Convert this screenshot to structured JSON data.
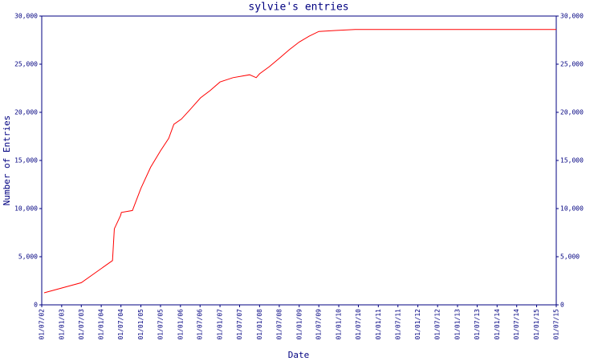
{
  "chart_data": {
    "type": "line",
    "title": "sylvie's entries",
    "x_label": "Date",
    "y_label": "Number of Entries",
    "color": "#ff0000",
    "x": [
      "23/07/02",
      "01/07/03",
      "14/04/04",
      "01/05/04",
      "28/06/04",
      "05/07/04",
      "15/10/04",
      "01/01/05",
      "01/04/05",
      "01/07/05",
      "15/09/05",
      "01/11/05",
      "10/01/06",
      "01/04/06",
      "05/07/06",
      "01/10/06",
      "01/01/07",
      "01/05/07",
      "01/10/07",
      "01/12/07",
      "01/01/08",
      "01/04/08",
      "05/07/08",
      "01/10/08",
      "01/01/09",
      "01/04/09",
      "01/07/09",
      "01/12/09",
      "01/06/10",
      "01/07/15"
    ],
    "values": [
      1250,
      2300,
      4600,
      7900,
      9300,
      9600,
      9800,
      12100,
      14300,
      16000,
      17300,
      18750,
      19300,
      20300,
      21500,
      22250,
      23150,
      23600,
      23900,
      23600,
      24000,
      24750,
      25650,
      26500,
      27300,
      27900,
      28400,
      28500,
      28600,
      28600
    ],
    "xlim": [
      "01/07/02",
      "01/07/15"
    ],
    "xticks": [
      "01/07/02",
      "01/01/03",
      "01/07/03",
      "01/01/04",
      "01/07/04",
      "01/01/05",
      "01/07/05",
      "01/01/06",
      "01/07/06",
      "01/01/07",
      "01/07/07",
      "01/01/08",
      "01/07/08",
      "01/01/09",
      "01/07/09",
      "01/01/10",
      "01/07/10",
      "01/01/11",
      "01/07/11",
      "01/01/12",
      "01/07/12",
      "01/01/13",
      "01/07/13",
      "01/01/14",
      "01/07/14",
      "01/01/15",
      "01/07/15"
    ],
    "ylim": [
      0,
      30000
    ],
    "yticks": [
      0,
      {
        "value": 5000,
        "label": "5,000"
      },
      {
        "value": 10000,
        "label": "10,000"
      },
      {
        "value": 15000,
        "label": "15,000"
      },
      {
        "value": 20000,
        "label": "20,000"
      },
      {
        "value": 25000,
        "label": "25,000"
      },
      {
        "value": 30000,
        "label": "30,000"
      }
    ],
    "y2lim": [
      0,
      30000
    ],
    "y2ticks": [
      0,
      {
        "value": 5000,
        "label": "5,000"
      },
      {
        "value": 10000,
        "label": "10,000"
      },
      {
        "value": 15000,
        "label": "15,000"
      },
      {
        "value": 20000,
        "label": "20,000"
      },
      {
        "value": 25000,
        "label": "25,000"
      },
      {
        "value": 30000,
        "label": "30,000"
      }
    ]
  }
}
